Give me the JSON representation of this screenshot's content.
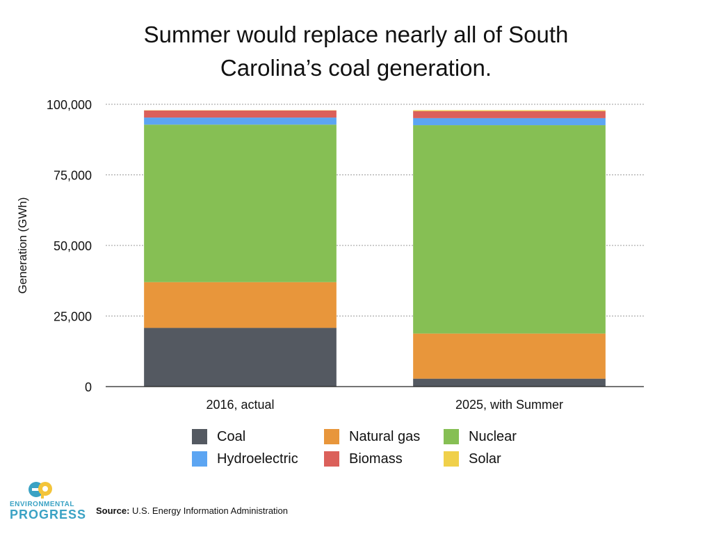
{
  "title_lines": [
    "Summer would replace nearly all of South",
    "Carolina’s coal generation."
  ],
  "legend": [
    {
      "label": "Coal",
      "color": "#545961"
    },
    {
      "label": "Natural gas",
      "color": "#e8963b"
    },
    {
      "label": "Nuclear",
      "color": "#86bf54"
    },
    {
      "label": "Hydroelectric",
      "color": "#5ca5f2"
    },
    {
      "label": "Biomass",
      "color": "#db605a"
    },
    {
      "label": "Solar",
      "color": "#f0d04a"
    }
  ],
  "source": {
    "label": "Source:",
    "text": "U.S. Energy Information Administration"
  },
  "logo": {
    "line1": "ENVIRONMENTAL",
    "line2": "PROGRESS",
    "icon": "environmental-progress-logo-icon"
  },
  "chart_data": {
    "type": "bar",
    "stacked": true,
    "title": "Summer would replace nearly all of South Carolina’s coal generation.",
    "xlabel": "",
    "ylabel": "Generation (GWh)",
    "ylim": [
      0,
      100000
    ],
    "yticks": [
      0,
      25000,
      50000,
      75000,
      100000
    ],
    "ytick_labels": [
      "0",
      "25,000",
      "50,000",
      "75,000",
      "100,000"
    ],
    "grid": true,
    "legend_position": "bottom",
    "categories": [
      "2016, actual",
      "2025, with Summer"
    ],
    "series": [
      {
        "name": "Coal",
        "color": "#545961",
        "values": [
          20800,
          2800
        ]
      },
      {
        "name": "Natural gas",
        "color": "#e8963b",
        "values": [
          16200,
          16000
        ]
      },
      {
        "name": "Nuclear",
        "color": "#86bf54",
        "values": [
          55800,
          73800
        ]
      },
      {
        "name": "Hydroelectric",
        "color": "#5ca5f2",
        "values": [
          2500,
          2500
        ]
      },
      {
        "name": "Biomass",
        "color": "#db605a",
        "values": [
          2500,
          2500
        ]
      },
      {
        "name": "Solar",
        "color": "#f0d04a",
        "values": [
          100,
          300
        ]
      }
    ]
  }
}
